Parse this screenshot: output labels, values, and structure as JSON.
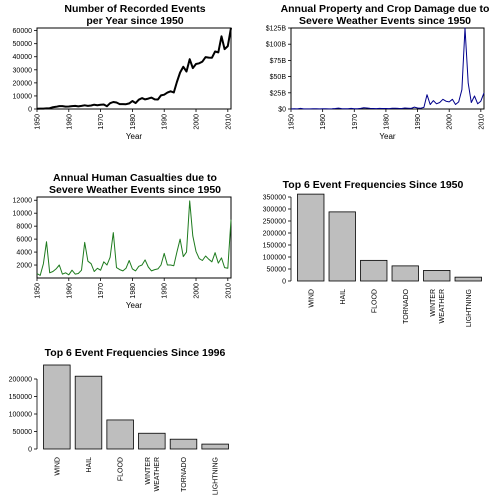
{
  "chart_data": [
    {
      "id": "events",
      "type": "line",
      "title": [
        "Number of Recorded Events",
        "per Year since 1950"
      ],
      "xlabel": "Year",
      "ylabel": "",
      "xlim": [
        1950,
        2011
      ],
      "ylim": [
        0,
        62000
      ],
      "xticks": [
        1950,
        1960,
        1970,
        1980,
        1990,
        2000,
        2010
      ],
      "yticks": [
        0,
        10000,
        20000,
        30000,
        40000,
        50000,
        60000
      ],
      "ytick_labels": [
        "0",
        "10000",
        "20000",
        "30000",
        "40000",
        "50000",
        "60000"
      ],
      "color": "#000000",
      "line_width": 2,
      "series": [
        {
          "x": [
            1950,
            1951,
            1952,
            1953,
            1954,
            1955,
            1956,
            1957,
            1958,
            1959,
            1960,
            1961,
            1962,
            1963,
            1964,
            1965,
            1966,
            1967,
            1968,
            1969,
            1970,
            1971,
            1972,
            1973,
            1974,
            1975,
            1976,
            1977,
            1978,
            1979,
            1980,
            1981,
            1982,
            1983,
            1984,
            1985,
            1986,
            1987,
            1988,
            1989,
            1990,
            1991,
            1992,
            1993,
            1994,
            1995,
            1996,
            1997,
            1998,
            1999,
            2000,
            2001,
            2002,
            2003,
            2004,
            2005,
            2006,
            2007,
            2008,
            2009,
            2010,
            2011
          ],
          "y": [
            223,
            269,
            272,
            492,
            609,
            1413,
            1703,
            2184,
            2213,
            1813,
            1945,
            2246,
            2389,
            1968,
            2348,
            2855,
            2388,
            2688,
            3312,
            2926,
            3215,
            3471,
            2168,
            4463,
            5388,
            4975,
            3768,
            3728,
            3657,
            4279,
            6146,
            4517,
            7132,
            8322,
            7335,
            7979,
            8726,
            7367,
            7257,
            10410,
            10946,
            12522,
            13534,
            12607,
            20631,
            27970,
            32270,
            28680,
            38128,
            31289,
            34471,
            34962,
            36293,
            39752,
            39363,
            39184,
            44034,
            43289,
            55663,
            45817,
            48161,
            62174
          ]
        }
      ]
    },
    {
      "id": "damage",
      "type": "line",
      "title": [
        "Annual Property and Crop Damage due to",
        "Severe Weather Events since 1950"
      ],
      "xlabel": "Year",
      "ylabel": "",
      "xlim": [
        1950,
        2011
      ],
      "ylim": [
        0,
        125
      ],
      "xticks": [
        1950,
        1960,
        1970,
        1980,
        1990,
        2000,
        2010
      ],
      "yticks": [
        0,
        25,
        50,
        75,
        100,
        125
      ],
      "ytick_labels": [
        "$0",
        "$25B",
        "$50B",
        "$75B",
        "$100B",
        "$125B"
      ],
      "color": "#00008B",
      "line_width": 1,
      "series": [
        {
          "x": [
            1950,
            1951,
            1952,
            1953,
            1954,
            1955,
            1956,
            1957,
            1958,
            1959,
            1960,
            1961,
            1962,
            1963,
            1964,
            1965,
            1966,
            1967,
            1968,
            1969,
            1970,
            1971,
            1972,
            1973,
            1974,
            1975,
            1976,
            1977,
            1978,
            1979,
            1980,
            1981,
            1982,
            1983,
            1984,
            1985,
            1986,
            1987,
            1988,
            1989,
            1990,
            1991,
            1992,
            1993,
            1994,
            1995,
            1996,
            1997,
            1998,
            1999,
            2000,
            2001,
            2002,
            2003,
            2004,
            2005,
            2006,
            2007,
            2008,
            2009,
            2010,
            2011
          ],
          "y": [
            0.1,
            0.3,
            0.2,
            0.9,
            0.1,
            0.1,
            0.2,
            0.4,
            0.3,
            0.2,
            0.3,
            0.5,
            0.1,
            0.3,
            0.7,
            1.4,
            0.6,
            0.4,
            0.5,
            0.9,
            0.5,
            0.4,
            0.9,
            2.0,
            1.5,
            1.0,
            0.8,
            0.6,
            0.9,
            0.7,
            0.8,
            0.6,
            1.1,
            1.3,
            0.9,
            0.7,
            1.5,
            1.2,
            0.9,
            3.0,
            1.5,
            1.2,
            2.5,
            22,
            7,
            13,
            8,
            10,
            15,
            12,
            11,
            15,
            7,
            11,
            30,
            125,
            40,
            10,
            20,
            8,
            12,
            25
          ]
        }
      ]
    },
    {
      "id": "casualties",
      "type": "line",
      "title": [
        "Annual Human Casualties due to",
        "Severe Weather Events since 1950"
      ],
      "xlabel": "Year",
      "ylabel": "",
      "xlim": [
        1950,
        2011
      ],
      "ylim": [
        0,
        12500
      ],
      "xticks": [
        1950,
        1960,
        1970,
        1980,
        1990,
        2000,
        2010
      ],
      "yticks": [
        2000,
        4000,
        6000,
        8000,
        10000,
        12000
      ],
      "ytick_labels": [
        "2000",
        "4000",
        "6000",
        "8000",
        "10000",
        "12000"
      ],
      "color": "#1E7B1E",
      "line_width": 1,
      "series": [
        {
          "x": [
            1950,
            1951,
            1952,
            1953,
            1954,
            1955,
            1956,
            1957,
            1958,
            1959,
            1960,
            1961,
            1962,
            1963,
            1964,
            1965,
            1966,
            1967,
            1968,
            1969,
            1970,
            1971,
            1972,
            1973,
            1974,
            1975,
            1976,
            1977,
            1978,
            1979,
            1980,
            1981,
            1982,
            1983,
            1984,
            1985,
            1986,
            1987,
            1988,
            1989,
            1990,
            1991,
            1992,
            1993,
            1994,
            1995,
            1996,
            1997,
            1998,
            1999,
            2000,
            2001,
            2002,
            2003,
            2004,
            2005,
            2006,
            2007,
            2008,
            2009,
            2010,
            2011
          ],
          "y": [
            700,
            400,
            2200,
            5600,
            800,
            1000,
            1400,
            2000,
            600,
            800,
            500,
            1200,
            600,
            700,
            1200,
            5500,
            2600,
            2200,
            1000,
            1500,
            1200,
            2500,
            2000,
            3200,
            7000,
            1600,
            1300,
            1100,
            1500,
            2700,
            1400,
            1100,
            1800,
            2000,
            2800,
            1700,
            1100,
            1300,
            1400,
            2000,
            3800,
            2000,
            2000,
            1900,
            4000,
            6000,
            3300,
            4000,
            11900,
            6500,
            4100,
            3000,
            2700,
            3400,
            2900,
            2500,
            3900,
            2300,
            3100,
            1600,
            1500,
            9000
          ]
        }
      ]
    },
    {
      "id": "freq1950",
      "type": "bar",
      "title": [
        "Top 6 Event Frequencies Since 1950"
      ],
      "xlabel": "",
      "ylabel": "",
      "ylim": [
        0,
        350000
      ],
      "yticks": [
        0,
        50000,
        100000,
        150000,
        200000,
        250000,
        300000,
        350000
      ],
      "ytick_labels": [
        "0",
        "50000",
        "100000",
        "150000",
        "200000",
        "250000",
        "300000",
        "350000"
      ],
      "categories": [
        "WIND",
        "HAIL",
        "FLOOD",
        "TORNADO",
        "WINTER WEATHER",
        "LIGHTNING"
      ],
      "category_lines": [
        [
          "WIND"
        ],
        [
          "HAIL"
        ],
        [
          "FLOOD"
        ],
        [
          "TORNADO"
        ],
        [
          "WINTER",
          "WEATHER"
        ],
        [
          "LIGHTNING"
        ]
      ],
      "values": [
        362000,
        288000,
        86000,
        63000,
        44000,
        16000
      ],
      "color": "#BEBEBE"
    },
    {
      "id": "freq1996",
      "type": "bar",
      "title": [
        "Top 6 Event Frequencies Since 1996"
      ],
      "xlabel": "",
      "ylabel": "",
      "ylim": [
        0,
        240000
      ],
      "yticks": [
        0,
        50000,
        100000,
        150000,
        200000
      ],
      "ytick_labels": [
        "0",
        "50000",
        "100000",
        "150000",
        "200000"
      ],
      "categories": [
        "WIND",
        "HAIL",
        "FLOOD",
        "WINTER WEATHER",
        "TORNADO",
        "LIGHTNING"
      ],
      "category_lines": [
        [
          "WIND"
        ],
        [
          "HAIL"
        ],
        [
          "FLOOD"
        ],
        [
          "WINTER",
          "WEATHER"
        ],
        [
          "TORNADO"
        ],
        [
          "LIGHTNING"
        ]
      ],
      "values": [
        240000,
        208000,
        83000,
        45000,
        28000,
        14000
      ],
      "color": "#BEBEBE"
    }
  ]
}
